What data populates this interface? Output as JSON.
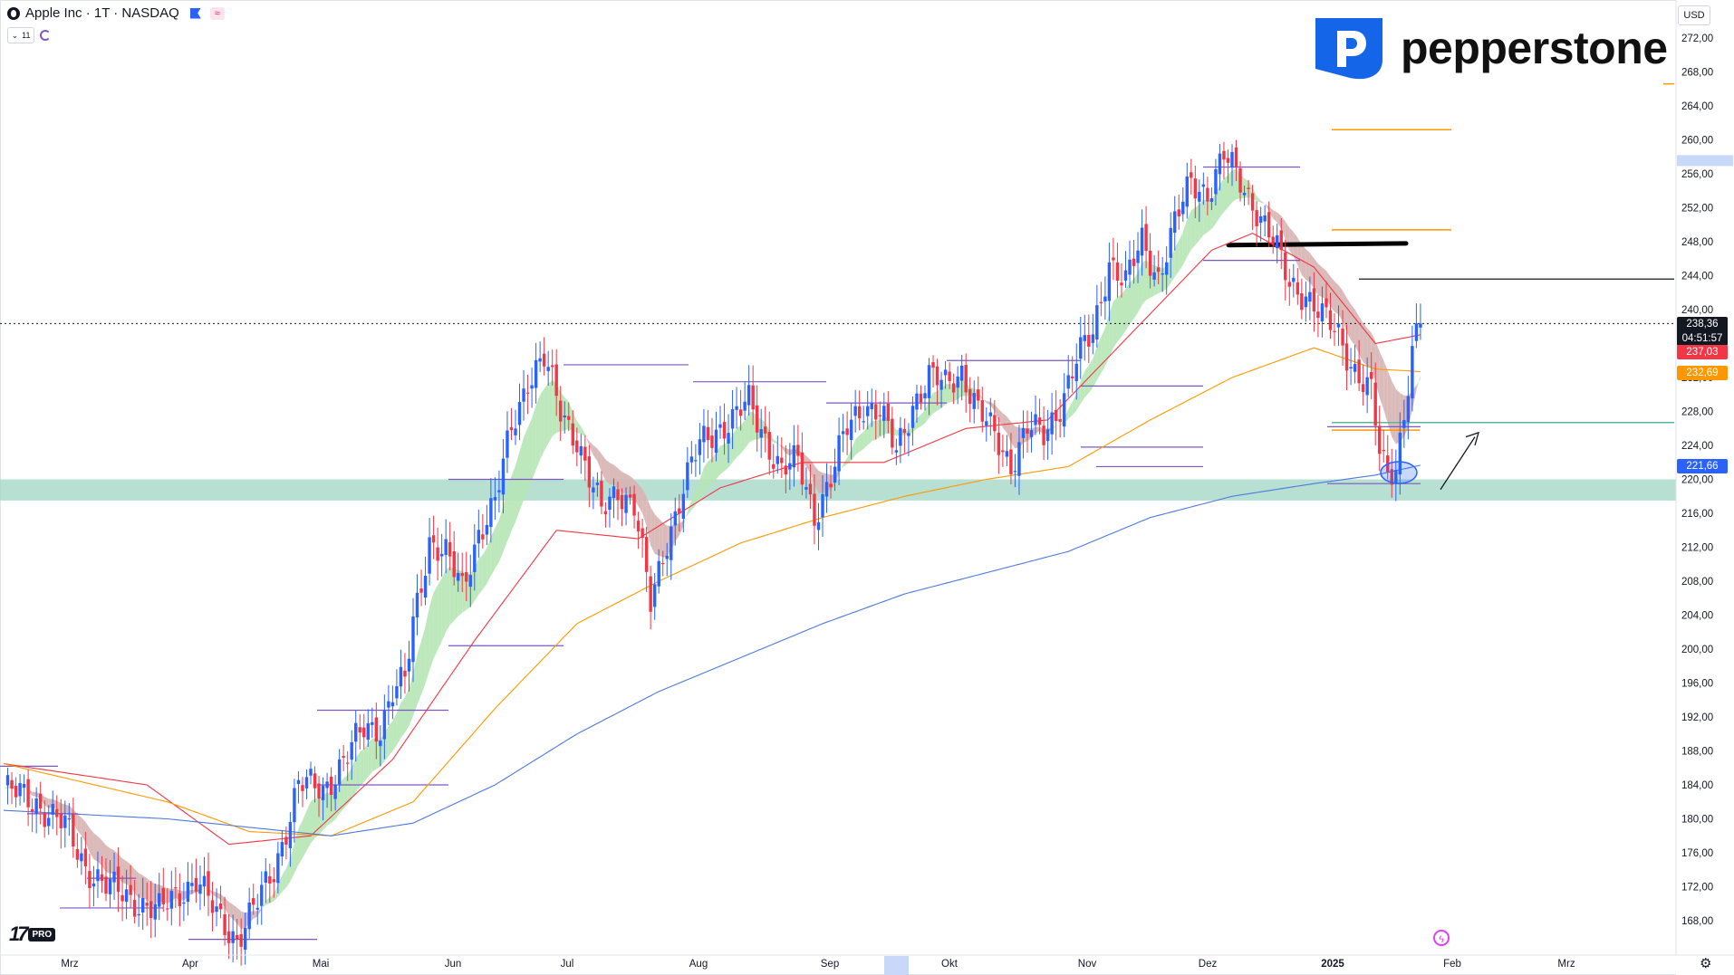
{
  "header": {
    "symbol_title": "Apple Inc · 1T · NASDAQ",
    "indicator_count": "11"
  },
  "branding": {
    "name": "pepperstone",
    "watermark": "TV PRO",
    "brand_color": "#1565e8"
  },
  "axis": {
    "currency": "USD"
  },
  "price_tags": {
    "last_price": "238,36",
    "countdown": "04:51:57",
    "ema_red": "237,03",
    "ema_orange": "232,69",
    "sma_blue": "221,66"
  },
  "colors": {
    "up": "#2962ff",
    "down": "#f23645",
    "ema_fast": "#f23645",
    "ema_slow": "#ff9800",
    "sma_long": "#4d79e0",
    "support_zone": "#9fd6c3",
    "ribbon_bull": "#b5e5b5",
    "ribbon_bear": "#d7b2b2",
    "range_line": "#7e57c2"
  },
  "chart_data": {
    "type": "candlestick",
    "title": "Apple Inc · 1T · NASDAQ",
    "ylim": [
      165,
      274.5
    ],
    "y_ticks": [
      "168,00",
      "172,00",
      "176,00",
      "180,00",
      "184,00",
      "188,00",
      "192,00",
      "196,00",
      "200,00",
      "204,00",
      "208,00",
      "212,00",
      "216,00",
      "220,00",
      "224,00",
      "228,00",
      "232,00",
      "236,00",
      "240,00",
      "244,00",
      "248,00",
      "252,00",
      "256,00",
      "260,00",
      "264,00",
      "268,00",
      "272,00"
    ],
    "x_month_labels": [
      "Mrz",
      "Apr",
      "Mai",
      "Jun",
      "Jul",
      "Aug",
      "Sep",
      "Okt",
      "Nov",
      "Dez",
      "2025",
      "Feb",
      "Mrz"
    ],
    "last_price": 238.36,
    "support_zone": [
      217.5,
      220.0
    ],
    "resistance_levels": [
      261.2,
      249.4,
      243.6,
      226.7
    ],
    "close_path": [
      [
        0,
        183.5
      ],
      [
        8,
        182.0
      ],
      [
        15,
        179.0
      ],
      [
        20,
        174.5
      ],
      [
        25,
        172.0
      ],
      [
        32,
        170.5
      ],
      [
        38,
        169.0
      ],
      [
        42,
        171.0
      ],
      [
        47,
        173.0
      ],
      [
        52,
        168.5
      ],
      [
        57,
        166.0
      ],
      [
        62,
        170.0
      ],
      [
        66,
        174.0
      ],
      [
        72,
        184.0
      ],
      [
        78,
        183.5
      ],
      [
        84,
        187.5
      ],
      [
        88,
        190.5
      ],
      [
        92,
        191.0
      ],
      [
        95,
        195.0
      ],
      [
        98,
        196.0
      ],
      [
        100,
        203.0
      ],
      [
        104,
        213.0
      ],
      [
        108,
        211.0
      ],
      [
        112,
        207.0
      ],
      [
        116,
        214.0
      ],
      [
        120,
        217.0
      ],
      [
        124,
        226.0
      ],
      [
        128,
        232.0
      ],
      [
        132,
        234.0
      ],
      [
        136,
        228.0
      ],
      [
        140,
        225.0
      ],
      [
        143,
        220.0
      ],
      [
        146,
        216.0
      ],
      [
        150,
        219.0
      ],
      [
        154,
        217.0
      ],
      [
        158,
        205.0
      ],
      [
        162,
        213.0
      ],
      [
        166,
        219.0
      ],
      [
        170,
        224.0
      ],
      [
        174,
        226.0
      ],
      [
        178,
        227.0
      ],
      [
        182,
        229.0
      ],
      [
        186,
        225.0
      ],
      [
        190,
        221.0
      ],
      [
        194,
        222.0
      ],
      [
        198,
        216.0
      ],
      [
        202,
        220.0
      ],
      [
        206,
        226.0
      ],
      [
        210,
        229.0
      ],
      [
        214,
        228.0
      ],
      [
        218,
        223.0
      ],
      [
        222,
        229.0
      ],
      [
        226,
        232.0
      ],
      [
        230,
        231.0
      ],
      [
        234,
        233.0
      ],
      [
        238,
        228.0
      ],
      [
        242,
        225.0
      ],
      [
        246,
        222.0
      ],
      [
        250,
        226.0
      ],
      [
        254,
        225.0
      ],
      [
        258,
        229.0
      ],
      [
        262,
        234.0
      ],
      [
        266,
        237.0
      ],
      [
        270,
        246.0
      ],
      [
        274,
        243.0
      ],
      [
        278,
        248.0
      ],
      [
        282,
        244.0
      ],
      [
        286,
        250.0
      ],
      [
        290,
        255.0
      ],
      [
        294,
        254.0
      ],
      [
        298,
        258.0
      ],
      [
        302,
        255.0
      ],
      [
        306,
        252.0
      ],
      [
        310,
        248.0
      ],
      [
        314,
        243.0
      ],
      [
        318,
        242.0
      ],
      [
        322,
        239.0
      ],
      [
        326,
        237.0
      ],
      [
        330,
        233.0
      ],
      [
        334,
        230.0
      ],
      [
        336,
        223.0
      ],
      [
        338,
        220.5
      ],
      [
        340,
        222.0
      ],
      [
        342,
        228.0
      ],
      [
        344,
        235.0
      ],
      [
        346,
        238.36
      ]
    ],
    "series": [
      {
        "name": "",
        "type": "ema",
        "points": [
          [
            0,
            186.5
          ],
          [
            35,
            184.0
          ],
          [
            55,
            177.0
          ],
          [
            75,
            178.0
          ],
          [
            95,
            187.0
          ],
          [
            115,
            201.0
          ],
          [
            135,
            214.0
          ],
          [
            155,
            213.0
          ],
          [
            175,
            219.0
          ],
          [
            195,
            222.0
          ],
          [
            215,
            222.0
          ],
          [
            235,
            226.0
          ],
          [
            255,
            227.0
          ],
          [
            275,
            237.0
          ],
          [
            295,
            247.0
          ],
          [
            305,
            249.0
          ],
          [
            320,
            245.0
          ],
          [
            335,
            236.0
          ],
          [
            346,
            237.03
          ]
        ]
      },
      {
        "name": "",
        "type": "ema",
        "points": [
          [
            0,
            186.5
          ],
          [
            40,
            182.0
          ],
          [
            60,
            178.5
          ],
          [
            80,
            178.0
          ],
          [
            100,
            182.0
          ],
          [
            120,
            193.0
          ],
          [
            140,
            203.0
          ],
          [
            160,
            208.0
          ],
          [
            180,
            212.5
          ],
          [
            200,
            215.5
          ],
          [
            220,
            218.0
          ],
          [
            240,
            220.0
          ],
          [
            260,
            221.5
          ],
          [
            280,
            227.0
          ],
          [
            300,
            232.0
          ],
          [
            320,
            235.5
          ],
          [
            335,
            233.0
          ],
          [
            346,
            232.69
          ]
        ]
      },
      {
        "name": "",
        "type": "sma",
        "points": [
          [
            0,
            181.0
          ],
          [
            40,
            180.0
          ],
          [
            60,
            179.0
          ],
          [
            80,
            178.0
          ],
          [
            100,
            179.5
          ],
          [
            120,
            184.0
          ],
          [
            140,
            190.0
          ],
          [
            160,
            195.0
          ],
          [
            180,
            199.0
          ],
          [
            200,
            203.0
          ],
          [
            220,
            206.5
          ],
          [
            240,
            209.0
          ],
          [
            260,
            211.5
          ],
          [
            280,
            215.5
          ],
          [
            300,
            218.0
          ],
          [
            320,
            219.5
          ],
          [
            335,
            220.5
          ],
          [
            346,
            221.66
          ]
        ]
      }
    ]
  }
}
